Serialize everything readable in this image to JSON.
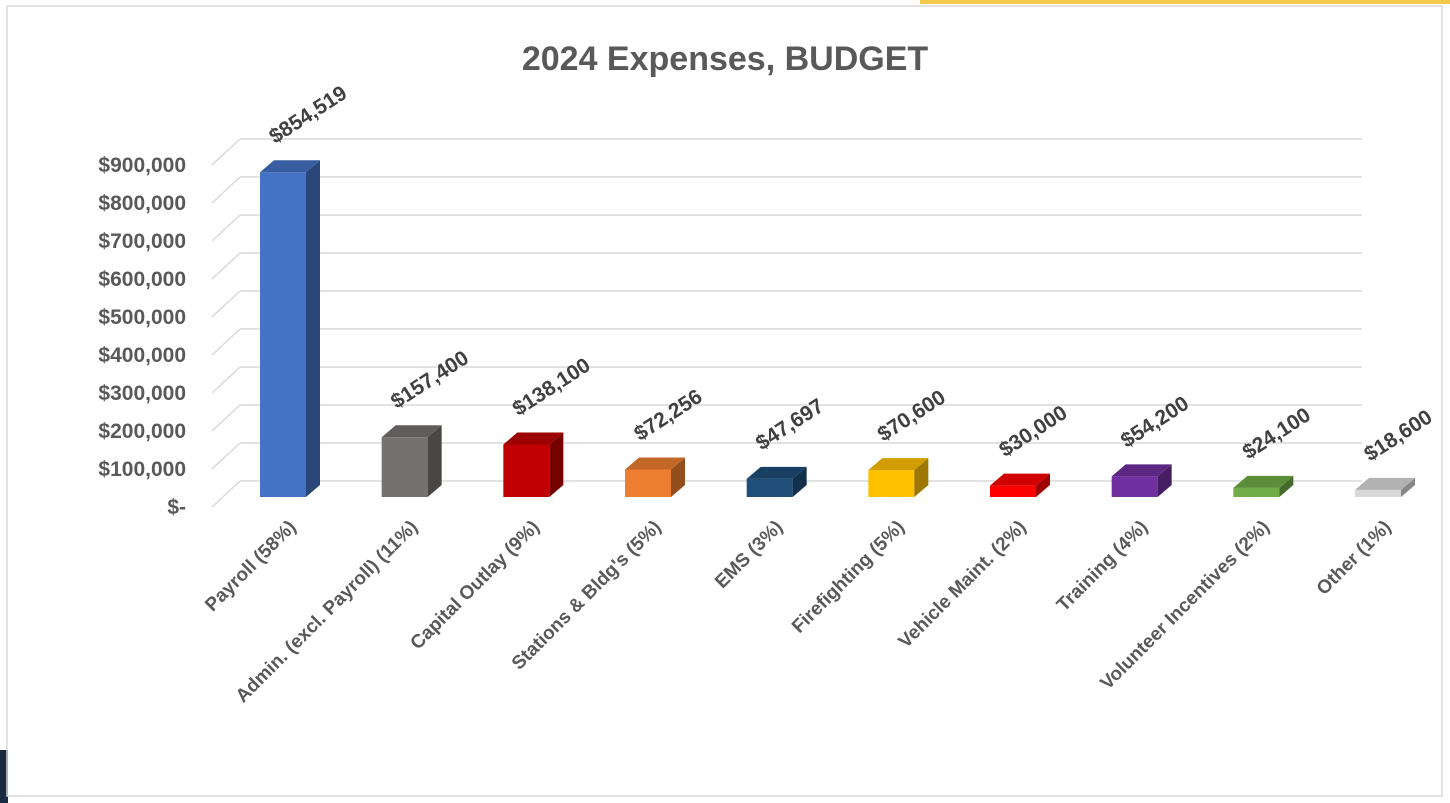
{
  "chart_data": {
    "type": "bar",
    "title": "2024 Expenses, BUDGET",
    "xlabel": "",
    "ylabel": "",
    "ylim": [
      0,
      900000
    ],
    "y_ticks": [
      0,
      100000,
      200000,
      300000,
      400000,
      500000,
      600000,
      700000,
      800000,
      900000
    ],
    "y_tick_labels": [
      "$-",
      "$100,000",
      "$200,000",
      "$300,000",
      "$400,000",
      "$500,000",
      "$600,000",
      "$700,000",
      "$800,000",
      "$900,000"
    ],
    "grid": true,
    "legend": "none",
    "style": "3d-clustered-column",
    "categories": [
      "Payroll (58%)",
      "Admin. (excl. Payroll) (11%)",
      "Capital Outlay (9%)",
      "Stations & Bldg's (5%)",
      "EMS (3%)",
      "Firefighting (5%)",
      "Vehicle Maint. (2%)",
      "Training  (4%)",
      "Volunteer Incentives (2%)",
      "Other (1%)"
    ],
    "values": [
      854519,
      157400,
      138100,
      72256,
      47697,
      70600,
      30000,
      54200,
      24100,
      18600
    ],
    "data_labels": [
      "$854,519",
      "$157,400",
      "$138,100",
      "$72,256",
      "$47,697",
      "$70,600",
      "$30,000",
      "$54,200",
      "$24,100",
      "$18,600"
    ],
    "colors": [
      "#4472C4",
      "#767171",
      "#C00000",
      "#ED7D31",
      "#1F4E79",
      "#FFC000",
      "#FF0000",
      "#7030A0",
      "#70AD47",
      "#D9D9D9"
    ]
  },
  "frame": {
    "accent_yellow": "#F2C94C",
    "accent_navy": "#1B2A41"
  }
}
